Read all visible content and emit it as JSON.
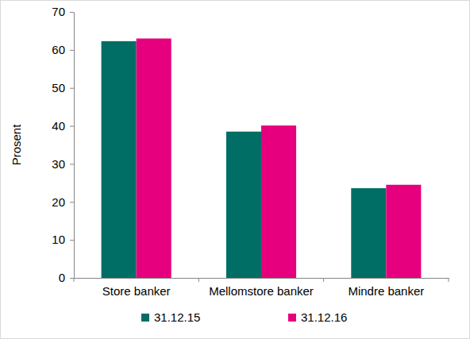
{
  "chart_data": {
    "type": "bar",
    "y_label": "Prosent",
    "categories": [
      "Store banker",
      "Mellomstore banker",
      "Mindre banker"
    ],
    "series": [
      {
        "name": "31.12.15",
        "color": "#006e64",
        "values": [
          62.3,
          38.5,
          23.6
        ]
      },
      {
        "name": "31.12.16",
        "color": "#e6007e",
        "values": [
          63.0,
          40.1,
          24.5
        ]
      }
    ],
    "ylim": [
      0,
      70
    ],
    "yticks": [
      0,
      10,
      20,
      30,
      40,
      50,
      60,
      70
    ],
    "grid": false,
    "legend": "bottom"
  }
}
